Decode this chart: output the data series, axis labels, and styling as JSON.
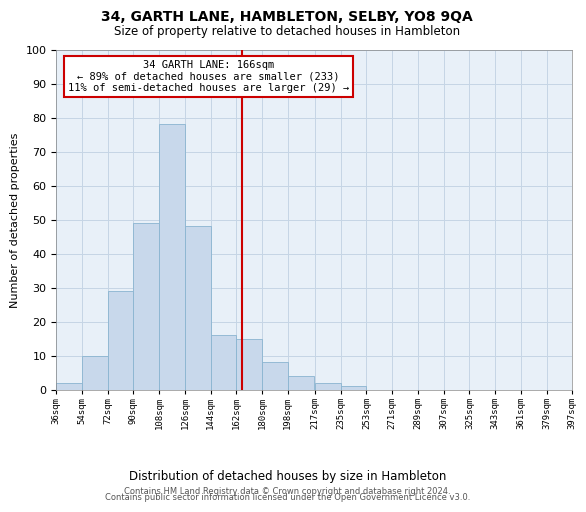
{
  "title": "34, GARTH LANE, HAMBLETON, SELBY, YO8 9QA",
  "subtitle": "Size of property relative to detached houses in Hambleton",
  "xlabel": "Distribution of detached houses by size in Hambleton",
  "ylabel": "Number of detached properties",
  "bar_color": "#c8d8eb",
  "bar_edge_color": "#8ab4d0",
  "background_color": "#ffffff",
  "plot_bg_color": "#e8f0f8",
  "grid_color": "#c5d5e5",
  "bin_left_edges": [
    36,
    54,
    72,
    90,
    108,
    126,
    144,
    162,
    180,
    198,
    217,
    235,
    253,
    271,
    289,
    307,
    325,
    343,
    361,
    379
  ],
  "bin_labels": [
    "36sqm",
    "54sqm",
    "72sqm",
    "90sqm",
    "108sqm",
    "126sqm",
    "144sqm",
    "162sqm",
    "180sqm",
    "198sqm",
    "217sqm",
    "235sqm",
    "253sqm",
    "271sqm",
    "289sqm",
    "307sqm",
    "325sqm",
    "343sqm",
    "361sqm",
    "379sqm",
    "397sqm"
  ],
  "counts": [
    2,
    10,
    29,
    49,
    78,
    48,
    16,
    15,
    8,
    4,
    2,
    1,
    0,
    0,
    0,
    0,
    0,
    0,
    0,
    0
  ],
  "bin_width": 18,
  "xlim": [
    36,
    397
  ],
  "property_line": 166,
  "property_line_color": "#cc0000",
  "annotation_title": "34 GARTH LANE: 166sqm",
  "annotation_line1": "← 89% of detached houses are smaller (233)",
  "annotation_line2": "11% of semi-detached houses are larger (29) →",
  "annotation_box_color": "#ffffff",
  "annotation_box_edge_color": "#cc0000",
  "ylim": [
    0,
    100
  ],
  "yticks": [
    0,
    10,
    20,
    30,
    40,
    50,
    60,
    70,
    80,
    90,
    100
  ],
  "footnote1": "Contains HM Land Registry data © Crown copyright and database right 2024.",
  "footnote2": "Contains public sector information licensed under the Open Government Licence v3.0."
}
